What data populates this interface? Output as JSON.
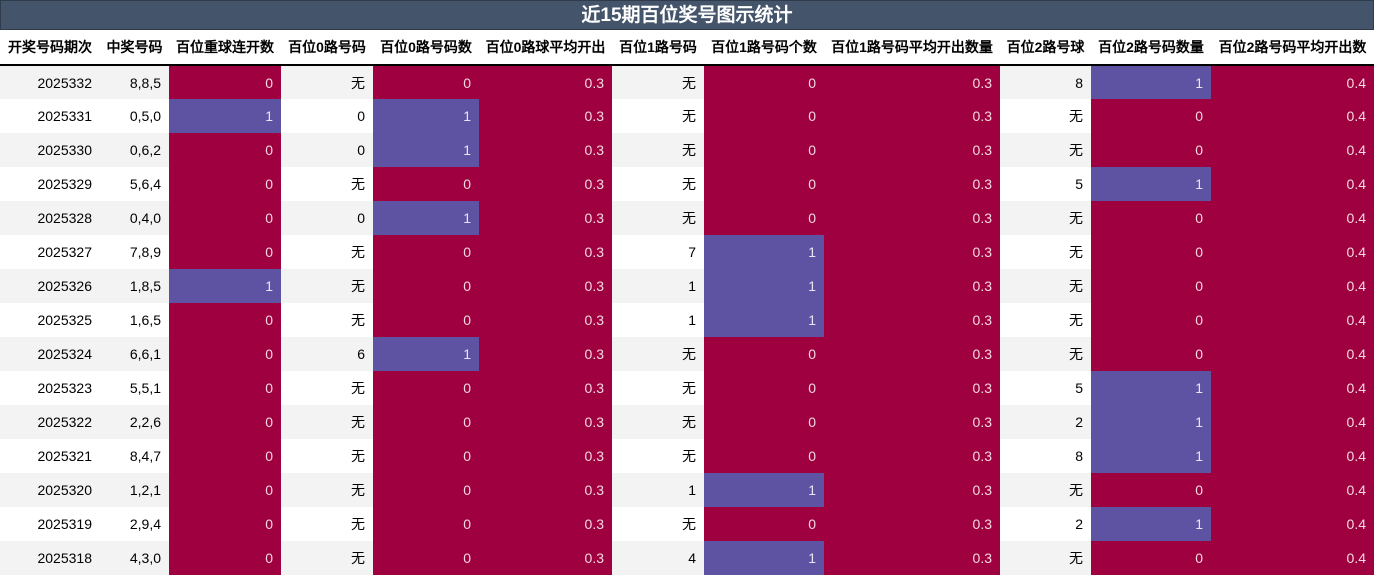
{
  "title": "近15期百位奖号图示统计",
  "colors": {
    "title_bg": "#44546a",
    "hot": "#9e0040",
    "cool": "#5e52a2",
    "row_alt": "#f3f3f3"
  },
  "columns": [
    "开奖号码期次",
    "中奖号码",
    "百位重球连开数",
    "百位0路号码",
    "百位0路号码数",
    "百位0路球平均开出",
    "百位1路号码",
    "百位1路号码个数",
    "百位1路号码平均开出数量",
    "百位2路号球",
    "百位2路号码数量",
    "百位2路号码平均开出数"
  ],
  "rows": [
    [
      "2025332",
      "8,8,5",
      "0",
      "无",
      "0",
      "0.3",
      "无",
      "0",
      "0.3",
      "8",
      "1",
      "0.4"
    ],
    [
      "2025331",
      "0,5,0",
      "1",
      "0",
      "1",
      "0.3",
      "无",
      "0",
      "0.3",
      "无",
      "0",
      "0.4"
    ],
    [
      "2025330",
      "0,6,2",
      "0",
      "0",
      "1",
      "0.3",
      "无",
      "0",
      "0.3",
      "无",
      "0",
      "0.4"
    ],
    [
      "2025329",
      "5,6,4",
      "0",
      "无",
      "0",
      "0.3",
      "无",
      "0",
      "0.3",
      "5",
      "1",
      "0.4"
    ],
    [
      "2025328",
      "0,4,0",
      "0",
      "0",
      "1",
      "0.3",
      "无",
      "0",
      "0.3",
      "无",
      "0",
      "0.4"
    ],
    [
      "2025327",
      "7,8,9",
      "0",
      "无",
      "0",
      "0.3",
      "7",
      "1",
      "0.3",
      "无",
      "0",
      "0.4"
    ],
    [
      "2025326",
      "1,8,5",
      "1",
      "无",
      "0",
      "0.3",
      "1",
      "1",
      "0.3",
      "无",
      "0",
      "0.4"
    ],
    [
      "2025325",
      "1,6,5",
      "0",
      "无",
      "0",
      "0.3",
      "1",
      "1",
      "0.3",
      "无",
      "0",
      "0.4"
    ],
    [
      "2025324",
      "6,6,1",
      "0",
      "6",
      "1",
      "0.3",
      "无",
      "0",
      "0.3",
      "无",
      "0",
      "0.4"
    ],
    [
      "2025323",
      "5,5,1",
      "0",
      "无",
      "0",
      "0.3",
      "无",
      "0",
      "0.3",
      "5",
      "1",
      "0.4"
    ],
    [
      "2025322",
      "2,2,6",
      "0",
      "无",
      "0",
      "0.3",
      "无",
      "0",
      "0.3",
      "2",
      "1",
      "0.4"
    ],
    [
      "2025321",
      "8,4,7",
      "0",
      "无",
      "0",
      "0.3",
      "无",
      "0",
      "0.3",
      "8",
      "1",
      "0.4"
    ],
    [
      "2025320",
      "1,2,1",
      "0",
      "无",
      "0",
      "0.3",
      "1",
      "1",
      "0.3",
      "无",
      "0",
      "0.4"
    ],
    [
      "2025319",
      "2,9,4",
      "0",
      "无",
      "0",
      "0.3",
      "无",
      "0",
      "0.3",
      "2",
      "1",
      "0.4"
    ],
    [
      "2025318",
      "4,3,0",
      "0",
      "无",
      "0",
      "0.3",
      "4",
      "1",
      "0.3",
      "无",
      "0",
      "0.4"
    ]
  ]
}
